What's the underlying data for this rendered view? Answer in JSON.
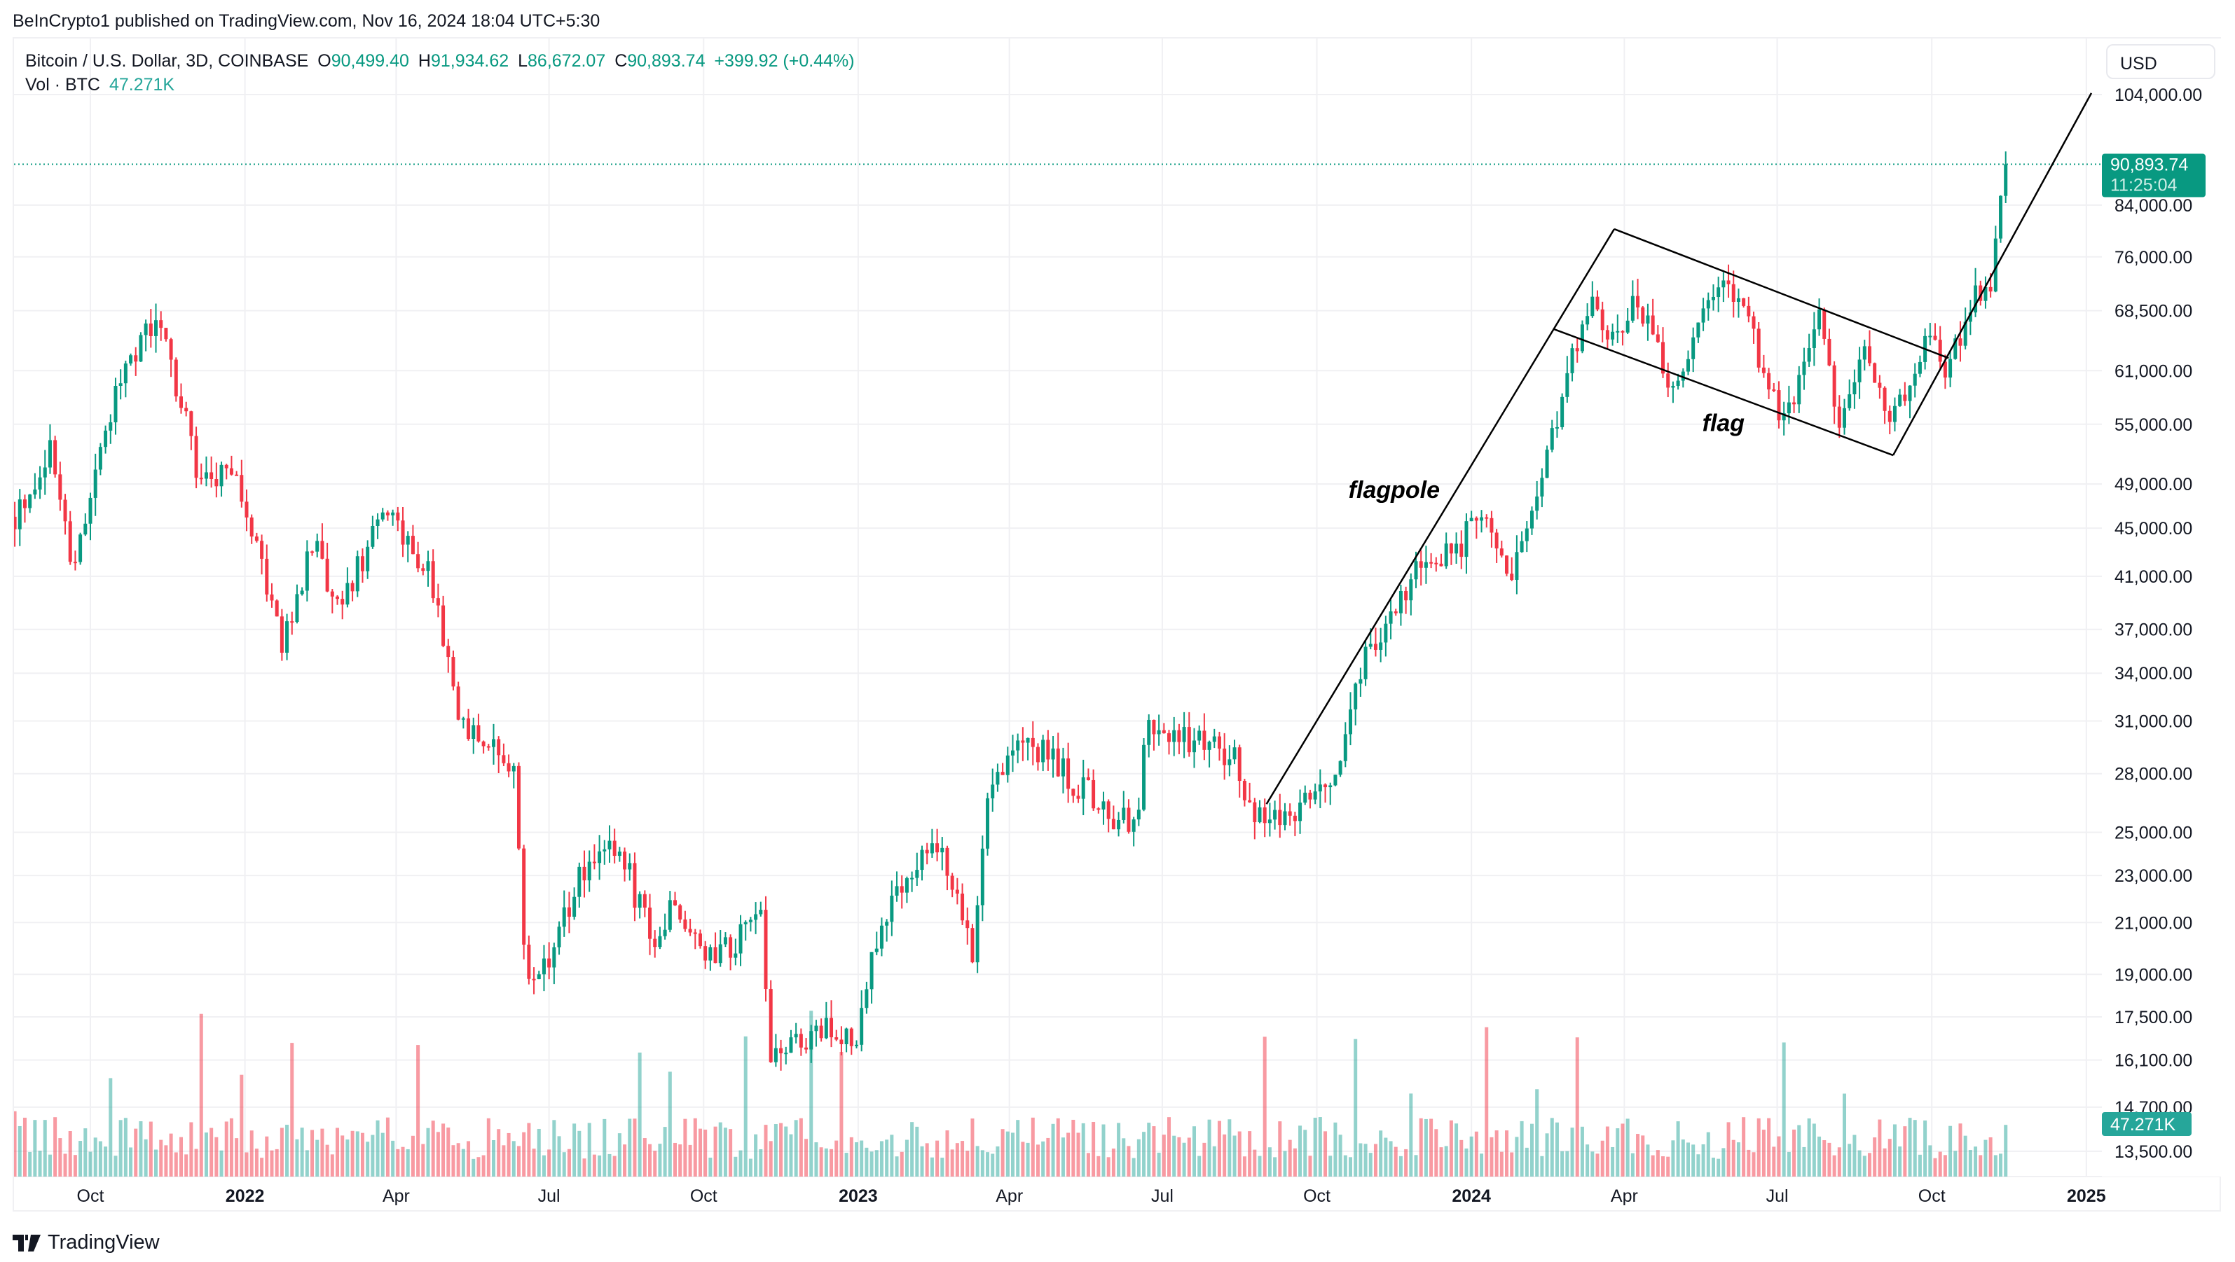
{
  "publish_line": "BeInCrypto1 published on TradingView.com, Nov 16, 2024 18:04 UTC+5:30",
  "legend": {
    "symbol": "Bitcoin / U.S. Dollar, 3D, COINBASE",
    "open_label": "O",
    "open": "90,499.40",
    "high_label": "H",
    "high": "91,934.62",
    "low_label": "L",
    "low": "86,672.07",
    "close_label": "C",
    "close": "90,893.74",
    "change": "+399.92 (+0.44%)",
    "volume_label": "Vol · BTC",
    "volume": "47.271K"
  },
  "currency_button": "USD",
  "last_price_tag": {
    "price": "90,893.74",
    "countdown": "11:25:04"
  },
  "volume_tag": "47.271K",
  "branding": "TradingView",
  "colors": {
    "up": "#089981",
    "down": "#f23645",
    "volume_up": "#26a69a",
    "grid": "#f0f0f3",
    "drawing": "#000000"
  },
  "chart_data": {
    "type": "candlestick",
    "interval": "3D",
    "y_scale": "log",
    "grid": true,
    "price_ticks": [
      "104,000.00",
      "84,000.00",
      "76,000.00",
      "68,500.00",
      "61,000.00",
      "55,000.00",
      "49,000.00",
      "45,000.00",
      "41,000.00",
      "37,000.00",
      "34,000.00",
      "31,000.00",
      "28,000.00",
      "25,000.00",
      "23,000.00",
      "21,000.00",
      "19,000.00",
      "17,500.00",
      "16,100.00",
      "14,700.00",
      "13,500.00"
    ],
    "time_ticks": [
      {
        "label": "Oct",
        "date": "2021-10-01",
        "bold": false
      },
      {
        "label": "2022",
        "date": "2022-01-01",
        "bold": true
      },
      {
        "label": "Apr",
        "date": "2022-04-01",
        "bold": false
      },
      {
        "label": "Jul",
        "date": "2022-07-01",
        "bold": false
      },
      {
        "label": "Oct",
        "date": "2022-10-01",
        "bold": false
      },
      {
        "label": "2023",
        "date": "2023-01-01",
        "bold": true
      },
      {
        "label": "Apr",
        "date": "2023-04-01",
        "bold": false
      },
      {
        "label": "Jul",
        "date": "2023-07-01",
        "bold": false
      },
      {
        "label": "Oct",
        "date": "2023-10-01",
        "bold": false
      },
      {
        "label": "2024",
        "date": "2024-01-01",
        "bold": true
      },
      {
        "label": "Apr",
        "date": "2024-04-01",
        "bold": false
      },
      {
        "label": "Jul",
        "date": "2024-07-01",
        "bold": false
      },
      {
        "label": "Oct",
        "date": "2024-10-01",
        "bold": false
      },
      {
        "label": "2025",
        "date": "2025-01-01",
        "bold": true
      }
    ],
    "approx_close_path": [
      [
        "2021-08-17",
        46000
      ],
      [
        "2021-09-07",
        52000
      ],
      [
        "2021-09-21",
        42000
      ],
      [
        "2021-10-01",
        48000
      ],
      [
        "2021-10-20",
        62000
      ],
      [
        "2021-11-10",
        67000
      ],
      [
        "2021-11-25",
        57000
      ],
      [
        "2021-12-04",
        49000
      ],
      [
        "2021-12-25",
        50000
      ],
      [
        "2022-01-10",
        42000
      ],
      [
        "2022-01-24",
        36000
      ],
      [
        "2022-02-10",
        44000
      ],
      [
        "2022-02-24",
        38000
      ],
      [
        "2022-03-28",
        47000
      ],
      [
        "2022-04-20",
        41000
      ],
      [
        "2022-05-10",
        31000
      ],
      [
        "2022-05-25",
        29500
      ],
      [
        "2022-06-10",
        28000
      ],
      [
        "2022-06-15",
        21000
      ],
      [
        "2022-06-18",
        19000
      ],
      [
        "2022-07-01",
        19500
      ],
      [
        "2022-07-20",
        23000
      ],
      [
        "2022-08-12",
        24300
      ],
      [
        "2022-09-01",
        20000
      ],
      [
        "2022-09-12",
        22000
      ],
      [
        "2022-10-01",
        19500
      ],
      [
        "2022-10-25",
        20500
      ],
      [
        "2022-11-05",
        21000
      ],
      [
        "2022-11-09",
        16500
      ],
      [
        "2022-12-15",
        17000
      ],
      [
        "2022-12-31",
        16600
      ],
      [
        "2023-01-14",
        21000
      ],
      [
        "2023-02-01",
        23500
      ],
      [
        "2023-02-16",
        24500
      ],
      [
        "2023-03-10",
        20000
      ],
      [
        "2023-03-20",
        28000
      ],
      [
        "2023-04-12",
        30000
      ],
      [
        "2023-05-10",
        27500
      ],
      [
        "2023-06-15",
        25000
      ],
      [
        "2023-06-22",
        30500
      ],
      [
        "2023-07-15",
        30000
      ],
      [
        "2023-08-15",
        29000
      ],
      [
        "2023-08-18",
        26000
      ],
      [
        "2023-09-12",
        25800
      ],
      [
        "2023-10-16",
        28500
      ],
      [
        "2023-10-24",
        34000
      ],
      [
        "2023-11-10",
        37000
      ],
      [
        "2023-12-05",
        43000
      ],
      [
        "2023-12-20",
        43000
      ],
      [
        "2024-01-10",
        46000
      ],
      [
        "2024-01-23",
        40000
      ],
      [
        "2024-02-10",
        47000
      ],
      [
        "2024-02-15",
        52000
      ],
      [
        "2024-02-28",
        61000
      ],
      [
        "2024-03-14",
        71000
      ],
      [
        "2024-03-20",
        63000
      ],
      [
        "2024-04-10",
        70000
      ],
      [
        "2024-05-01",
        58000
      ],
      [
        "2024-05-20",
        70000
      ],
      [
        "2024-06-07",
        71000
      ],
      [
        "2024-07-05",
        55000
      ],
      [
        "2024-07-28",
        68000
      ],
      [
        "2024-08-05",
        54000
      ],
      [
        "2024-08-23",
        64000
      ],
      [
        "2024-09-06",
        54000
      ],
      [
        "2024-09-27",
        65000
      ],
      [
        "2024-10-10",
        61000
      ],
      [
        "2024-10-29",
        72000
      ],
      [
        "2024-11-05",
        69000
      ],
      [
        "2024-11-11",
        88000
      ],
      [
        "2024-11-16",
        90893.74
      ]
    ],
    "last_price": 90893.74,
    "drawings": [
      {
        "name": "flagpole-line",
        "from": [
          "2023-09-01",
          26400
        ],
        "to": [
          "2024-03-26",
          80200
        ]
      },
      {
        "name": "flag-upper-line",
        "from": [
          "2024-03-26",
          80200
        ],
        "to": [
          "2024-10-11",
          62500
        ]
      },
      {
        "name": "flag-lower-line",
        "from": [
          "2024-02-19",
          66100
        ],
        "to": [
          "2024-09-08",
          51800
        ]
      },
      {
        "name": "breakout-line",
        "from": [
          "2024-09-08",
          51800
        ],
        "to": [
          "2025-01-04",
          104300
        ]
      }
    ],
    "annotations": [
      {
        "text": "flagpole",
        "date": "2023-11-16",
        "price": 47700
      },
      {
        "text": "flag",
        "date": "2024-05-30",
        "price": 54300
      }
    ]
  }
}
